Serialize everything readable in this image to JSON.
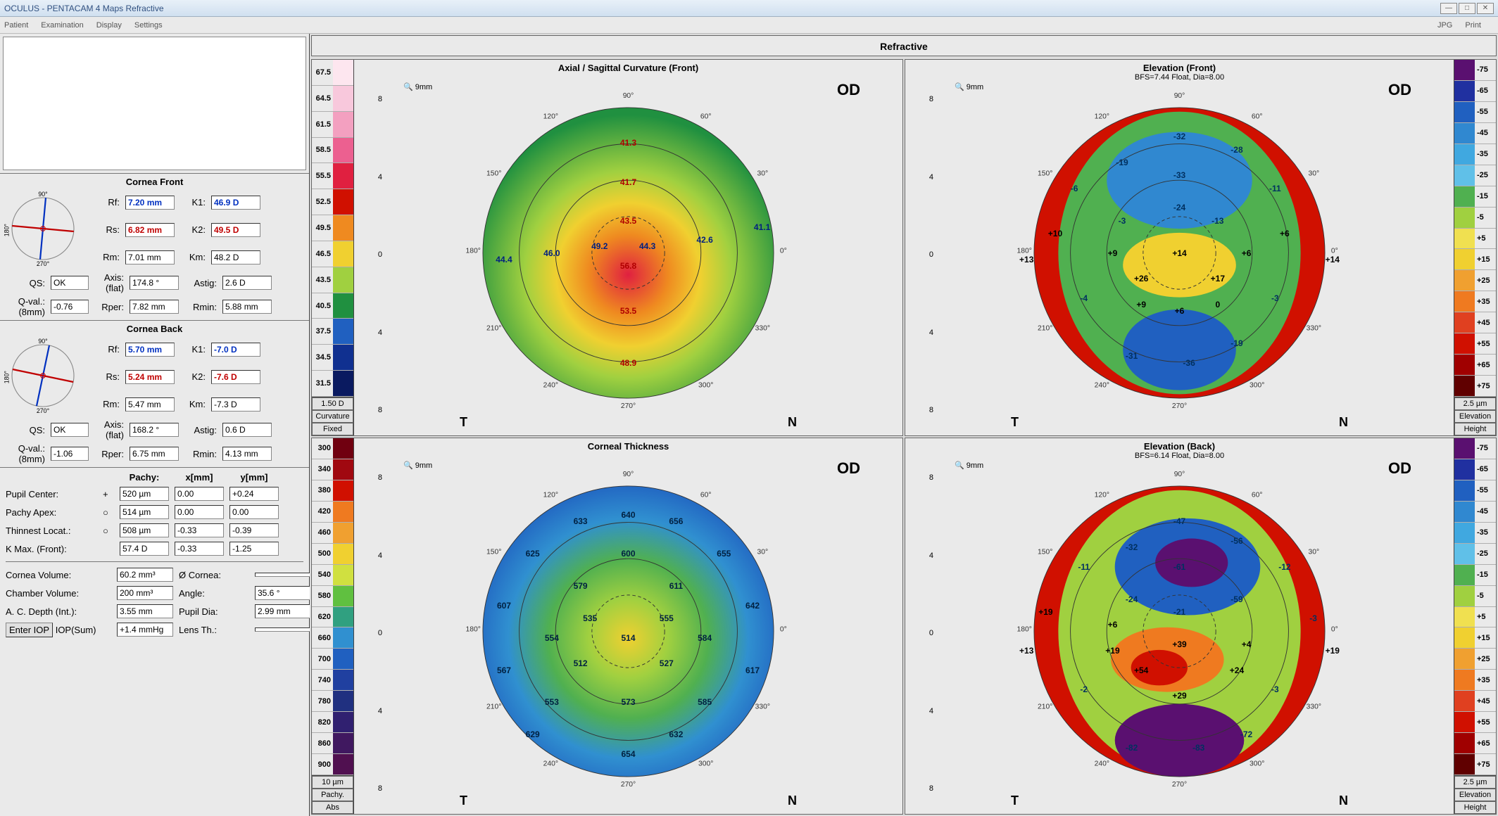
{
  "window": {
    "title": "OCULUS  -  PENTACAM  4 Maps Refractive",
    "btn_min": "—",
    "btn_max": "□",
    "btn_close": "✕"
  },
  "menu": {
    "patient": "Patient",
    "examination": "Examination",
    "display": "Display",
    "settings": "Settings",
    "jpg": "JPG",
    "print": "Print"
  },
  "maps_title": "Refractive",
  "eye": "OD",
  "cornea_front": {
    "title": "Cornea Front",
    "rf": "7.20 mm",
    "k1": "46.9 D",
    "rs": "6.82 mm",
    "k2": "49.5 D",
    "rm": "7.01 mm",
    "km": "48.2 D",
    "qs": "OK",
    "axis": "174.8 °",
    "astig": "2.6 D",
    "qval": "-0.76",
    "rper": "7.82 mm",
    "rmin": "5.88 mm",
    "axis_line_color": "#c00000",
    "perp_line_color": "#0030c0",
    "axis_angle": 174.8
  },
  "cornea_back": {
    "title": "Cornea Back",
    "rf": "5.70 mm",
    "k1": "-7.0 D",
    "rs": "5.24 mm",
    "k2": "-7.6 D",
    "rm": "5.47 mm",
    "km": "-7.3 D",
    "qs": "OK",
    "axis": "168.2 °",
    "astig": "0.6 D",
    "qval": "-1.06",
    "rper": "6.75 mm",
    "rmin": "4.13 mm",
    "axis_line_color": "#c00000",
    "perp_line_color": "#0030c0",
    "axis_angle": 168.2
  },
  "labels": {
    "rf": "Rf:",
    "k1": "K1:",
    "rs": "Rs:",
    "k2": "K2:",
    "rm": "Rm:",
    "km": "Km:",
    "qs": "QS:",
    "axis_flat": "Axis:\n(flat)",
    "astig": "Astig:",
    "qval": "Q-val.:\n(8mm)",
    "rper": "Rper:",
    "rmin": "Rmin:",
    "pachy": "Pachy:",
    "xmm": "x[mm]",
    "ymm": "y[mm]",
    "pupil_center": "Pupil Center:",
    "pachy_apex": "Pachy Apex:",
    "thinnest": "Thinnest Locat.:",
    "kmax": "K Max. (Front):",
    "cornea_vol": "Cornea Volume:",
    "diam": "Ø Cornea:",
    "chamber_vol": "Chamber Volume:",
    "angle": "Angle:",
    "ac_depth": "A. C. Depth (Int.):",
    "pupil_dia": "Pupil Dia:",
    "enter_iop": "Enter IOP",
    "iop_sum": "IOP(Sum)",
    "lens_th": "Lens Th.:",
    "mag": "🔍 9mm",
    "t": "T",
    "n": "N"
  },
  "pachy": {
    "pupil_center": {
      "sym": "+",
      "p": "520 µm",
      "x": "0.00",
      "y": "+0.24"
    },
    "apex": {
      "sym": "○",
      "p": "514 µm",
      "x": "0.00",
      "y": "0.00"
    },
    "thin": {
      "sym": "○",
      "p": "508 µm",
      "x": "-0.33",
      "y": "-0.39"
    },
    "kmax": {
      "sym": "",
      "p": "57.4 D",
      "x": "-0.33",
      "y": "-1.25"
    }
  },
  "vol": {
    "cornea": "60.2 mm³",
    "diam": "",
    "chamber": "200 mm³",
    "angle": "35.6 °",
    "depth": "3.55 mm",
    "pupil": "2.99 mm",
    "iop_sum": "+1.4 mmHg",
    "lens_th": ""
  },
  "map1": {
    "title": "Axial / Sagittal Curvature (Front)",
    "colorbar_side": "left",
    "cb": [
      {
        "v": "67.5",
        "c": "#fde6ef"
      },
      {
        "v": "64.5",
        "c": "#f8c8dc"
      },
      {
        "v": "61.5",
        "c": "#f3a0c0"
      },
      {
        "v": "58.5",
        "c": "#ec6090"
      },
      {
        "v": "55.5",
        "c": "#e02040"
      },
      {
        "v": "52.5",
        "c": "#d01000"
      },
      {
        "v": "49.5",
        "c": "#ef8a20"
      },
      {
        "v": "46.5",
        "c": "#f0d030"
      },
      {
        "v": "43.5",
        "c": "#a0d040"
      },
      {
        "v": "40.5",
        "c": "#209040"
      },
      {
        "v": "37.5",
        "c": "#2060c0"
      },
      {
        "v": "34.5",
        "c": "#103090"
      },
      {
        "v": "31.5",
        "c": "#0a1a60"
      }
    ],
    "cb_footer": [
      "1.50 D",
      "Curvature",
      "Fixed"
    ],
    "axis_ticks": [
      "8",
      "4",
      "0",
      "4",
      "8"
    ],
    "deg_labels": [
      "0°",
      "30°",
      "60°",
      "90°",
      "120°",
      "150°",
      "180°",
      "210°",
      "240°",
      "270°",
      "300°",
      "330°"
    ],
    "values": [
      {
        "x": 50,
        "y": 16,
        "t": "41.3",
        "c": "#b00000"
      },
      {
        "x": 50,
        "y": 28,
        "t": "41.7",
        "c": "#b00000"
      },
      {
        "x": 50,
        "y": 40,
        "t": "43.5",
        "c": "#b00000"
      },
      {
        "x": 44,
        "y": 48,
        "t": "49.2",
        "c": "#002080"
      },
      {
        "x": 54,
        "y": 48,
        "t": "44.3",
        "c": "#002080"
      },
      {
        "x": 66,
        "y": 46,
        "t": "42.6",
        "c": "#002080"
      },
      {
        "x": 78,
        "y": 42,
        "t": "41.1",
        "c": "#002080"
      },
      {
        "x": 34,
        "y": 50,
        "t": "46.0",
        "c": "#002080"
      },
      {
        "x": 24,
        "y": 52,
        "t": "44.4",
        "c": "#002080"
      },
      {
        "x": 50,
        "y": 54,
        "t": "56.8",
        "c": "#b00000"
      },
      {
        "x": 50,
        "y": 68,
        "t": "53.5",
        "c": "#b00000"
      },
      {
        "x": 50,
        "y": 84,
        "t": "48.9",
        "c": "#b00000"
      }
    ],
    "gradient_stops": [
      {
        "off": "0%",
        "c": "#e02040"
      },
      {
        "off": "25%",
        "c": "#ef8a20"
      },
      {
        "off": "45%",
        "c": "#f0d030"
      },
      {
        "off": "65%",
        "c": "#a0d040"
      },
      {
        "off": "100%",
        "c": "#209040"
      }
    ],
    "center_offset_y": 0.15
  },
  "map2": {
    "title": "Elevation (Front)",
    "subtitle": "BFS=7.44 Float, Dia=8.00",
    "colorbar_side": "right",
    "cb": [
      {
        "v": "-75",
        "c": "#5a1070"
      },
      {
        "v": "-65",
        "c": "#2030a0"
      },
      {
        "v": "-55",
        "c": "#2060c0"
      },
      {
        "v": "-45",
        "c": "#3088d0"
      },
      {
        "v": "-35",
        "c": "#40a8e0"
      },
      {
        "v": "-25",
        "c": "#60c0e8"
      },
      {
        "v": "-15",
        "c": "#50b050"
      },
      {
        "v": "-5",
        "c": "#a0d040"
      },
      {
        "v": "+5",
        "c": "#f0e050"
      },
      {
        "v": "+15",
        "c": "#f0d030"
      },
      {
        "v": "+25",
        "c": "#f0a030"
      },
      {
        "v": "+35",
        "c": "#ef7a20"
      },
      {
        "v": "+45",
        "c": "#e04020"
      },
      {
        "v": "+55",
        "c": "#d01000"
      },
      {
        "v": "+65",
        "c": "#a00000"
      },
      {
        "v": "+75",
        "c": "#600000"
      }
    ],
    "cb_footer": [
      "2.5 µm",
      "Elevation",
      "Height"
    ],
    "axis_ticks": [
      "8",
      "4",
      "0",
      "4",
      "8"
    ],
    "values": [
      {
        "x": 50,
        "y": 14,
        "t": "-32",
        "c": "#003060"
      },
      {
        "x": 62,
        "y": 18,
        "t": "-28",
        "c": "#003060"
      },
      {
        "x": 38,
        "y": 22,
        "t": "-19",
        "c": "#003060"
      },
      {
        "x": 50,
        "y": 26,
        "t": "-33",
        "c": "#003060"
      },
      {
        "x": 70,
        "y": 30,
        "t": "-11",
        "c": "#003060"
      },
      {
        "x": 28,
        "y": 30,
        "t": "-6",
        "c": "#003060"
      },
      {
        "x": 50,
        "y": 36,
        "t": "-24",
        "c": "#003060"
      },
      {
        "x": 38,
        "y": 40,
        "t": "-3",
        "c": "#003060"
      },
      {
        "x": 58,
        "y": 40,
        "t": "-13",
        "c": "#003060"
      },
      {
        "x": 24,
        "y": 44,
        "t": "+10",
        "c": "#000"
      },
      {
        "x": 72,
        "y": 44,
        "t": "+6",
        "c": "#000"
      },
      {
        "x": 36,
        "y": 50,
        "t": "+9",
        "c": "#000"
      },
      {
        "x": 50,
        "y": 50,
        "t": "+14",
        "c": "#000"
      },
      {
        "x": 64,
        "y": 50,
        "t": "+6",
        "c": "#000"
      },
      {
        "x": 18,
        "y": 52,
        "t": "+13",
        "c": "#000"
      },
      {
        "x": 82,
        "y": 52,
        "t": "+14",
        "c": "#000"
      },
      {
        "x": 42,
        "y": 58,
        "t": "+26",
        "c": "#000"
      },
      {
        "x": 58,
        "y": 58,
        "t": "+17",
        "c": "#000"
      },
      {
        "x": 30,
        "y": 64,
        "t": "-4",
        "c": "#003060"
      },
      {
        "x": 42,
        "y": 66,
        "t": "+9",
        "c": "#000"
      },
      {
        "x": 50,
        "y": 68,
        "t": "+6",
        "c": "#000"
      },
      {
        "x": 58,
        "y": 66,
        "t": "0",
        "c": "#000"
      },
      {
        "x": 70,
        "y": 64,
        "t": "-3",
        "c": "#003060"
      },
      {
        "x": 40,
        "y": 82,
        "t": "-31",
        "c": "#003060"
      },
      {
        "x": 52,
        "y": 84,
        "t": "-36",
        "c": "#003060"
      },
      {
        "x": 62,
        "y": 78,
        "t": "-19",
        "c": "#003060"
      }
    ],
    "bg_type": "elevation_front"
  },
  "map3": {
    "title": "Corneal Thickness",
    "colorbar_side": "left",
    "cb": [
      {
        "v": "300",
        "c": "#700010"
      },
      {
        "v": "340",
        "c": "#a00810"
      },
      {
        "v": "380",
        "c": "#d01000"
      },
      {
        "v": "420",
        "c": "#ef7a20"
      },
      {
        "v": "460",
        "c": "#f0a030"
      },
      {
        "v": "500",
        "c": "#f0d030"
      },
      {
        "v": "540",
        "c": "#d0e040"
      },
      {
        "v": "580",
        "c": "#60c040"
      },
      {
        "v": "620",
        "c": "#30a080"
      },
      {
        "v": "660",
        "c": "#3090d0"
      },
      {
        "v": "700",
        "c": "#2060c0"
      },
      {
        "v": "740",
        "c": "#2040a0"
      },
      {
        "v": "780",
        "c": "#203080"
      },
      {
        "v": "820",
        "c": "#302070"
      },
      {
        "v": "860",
        "c": "#401860"
      },
      {
        "v": "900",
        "c": "#501050"
      }
    ],
    "cb_footer": [
      "10 µm",
      "Pachy.",
      "Abs"
    ],
    "axis_ticks": [
      "8",
      "4",
      "0",
      "4",
      "8"
    ],
    "values": [
      {
        "x": 40,
        "y": 16,
        "t": "633",
        "c": "#002040"
      },
      {
        "x": 50,
        "y": 14,
        "t": "640",
        "c": "#002040"
      },
      {
        "x": 60,
        "y": 16,
        "t": "656",
        "c": "#002040"
      },
      {
        "x": 30,
        "y": 26,
        "t": "625",
        "c": "#002040"
      },
      {
        "x": 50,
        "y": 26,
        "t": "600",
        "c": "#002040"
      },
      {
        "x": 70,
        "y": 26,
        "t": "655",
        "c": "#002040"
      },
      {
        "x": 40,
        "y": 36,
        "t": "579",
        "c": "#002040"
      },
      {
        "x": 60,
        "y": 36,
        "t": "611",
        "c": "#002040"
      },
      {
        "x": 24,
        "y": 42,
        "t": "607",
        "c": "#002040"
      },
      {
        "x": 42,
        "y": 46,
        "t": "535",
        "c": "#002040"
      },
      {
        "x": 58,
        "y": 46,
        "t": "555",
        "c": "#002040"
      },
      {
        "x": 76,
        "y": 42,
        "t": "642",
        "c": "#002040"
      },
      {
        "x": 34,
        "y": 52,
        "t": "554",
        "c": "#002040"
      },
      {
        "x": 50,
        "y": 52,
        "t": "514",
        "c": "#002040"
      },
      {
        "x": 66,
        "y": 52,
        "t": "584",
        "c": "#002040"
      },
      {
        "x": 40,
        "y": 60,
        "t": "512",
        "c": "#002040"
      },
      {
        "x": 58,
        "y": 60,
        "t": "527",
        "c": "#002040"
      },
      {
        "x": 24,
        "y": 62,
        "t": "567",
        "c": "#002040"
      },
      {
        "x": 76,
        "y": 62,
        "t": "617",
        "c": "#002040"
      },
      {
        "x": 34,
        "y": 72,
        "t": "553",
        "c": "#002040"
      },
      {
        "x": 50,
        "y": 72,
        "t": "573",
        "c": "#002040"
      },
      {
        "x": 66,
        "y": 72,
        "t": "585",
        "c": "#002040"
      },
      {
        "x": 30,
        "y": 82,
        "t": "629",
        "c": "#002040"
      },
      {
        "x": 60,
        "y": 82,
        "t": "632",
        "c": "#002040"
      },
      {
        "x": 50,
        "y": 88,
        "t": "654",
        "c": "#002040"
      }
    ],
    "gradient_stops": [
      {
        "off": "0%",
        "c": "#f0d030"
      },
      {
        "off": "25%",
        "c": "#a0d040"
      },
      {
        "off": "50%",
        "c": "#50b050"
      },
      {
        "off": "75%",
        "c": "#3090d0"
      },
      {
        "off": "100%",
        "c": "#2060c0"
      }
    ],
    "center_offset_y": 0.05
  },
  "map4": {
    "title": "Elevation (Back)",
    "subtitle": "BFS=6.14 Float, Dia=8.00",
    "colorbar_side": "right",
    "cb": [
      {
        "v": "-75",
        "c": "#5a1070"
      },
      {
        "v": "-65",
        "c": "#2030a0"
      },
      {
        "v": "-55",
        "c": "#2060c0"
      },
      {
        "v": "-45",
        "c": "#3088d0"
      },
      {
        "v": "-35",
        "c": "#40a8e0"
      },
      {
        "v": "-25",
        "c": "#60c0e8"
      },
      {
        "v": "-15",
        "c": "#50b050"
      },
      {
        "v": "-5",
        "c": "#a0d040"
      },
      {
        "v": "+5",
        "c": "#f0e050"
      },
      {
        "v": "+15",
        "c": "#f0d030"
      },
      {
        "v": "+25",
        "c": "#f0a030"
      },
      {
        "v": "+35",
        "c": "#ef7a20"
      },
      {
        "v": "+45",
        "c": "#e04020"
      },
      {
        "v": "+55",
        "c": "#d01000"
      },
      {
        "v": "+65",
        "c": "#a00000"
      },
      {
        "v": "+75",
        "c": "#600000"
      }
    ],
    "cb_footer": [
      "2.5 µm",
      "Elevation",
      "Height"
    ],
    "axis_ticks": [
      "8",
      "4",
      "0",
      "4",
      "8"
    ],
    "values": [
      {
        "x": 50,
        "y": 16,
        "t": "-47",
        "c": "#003060"
      },
      {
        "x": 40,
        "y": 24,
        "t": "-32",
        "c": "#003060"
      },
      {
        "x": 62,
        "y": 22,
        "t": "-56",
        "c": "#003060"
      },
      {
        "x": 50,
        "y": 30,
        "t": "-61",
        "c": "#003060"
      },
      {
        "x": 30,
        "y": 30,
        "t": "-11",
        "c": "#003060"
      },
      {
        "x": 72,
        "y": 30,
        "t": "-12",
        "c": "#003060"
      },
      {
        "x": 40,
        "y": 40,
        "t": "-24",
        "c": "#003060"
      },
      {
        "x": 62,
        "y": 40,
        "t": "-59",
        "c": "#003060"
      },
      {
        "x": 22,
        "y": 44,
        "t": "+19",
        "c": "#000"
      },
      {
        "x": 50,
        "y": 44,
        "t": "-21",
        "c": "#003060"
      },
      {
        "x": 78,
        "y": 46,
        "t": "-3",
        "c": "#003060"
      },
      {
        "x": 36,
        "y": 48,
        "t": "+6",
        "c": "#000"
      },
      {
        "x": 36,
        "y": 56,
        "t": "+19",
        "c": "#000"
      },
      {
        "x": 50,
        "y": 54,
        "t": "+39",
        "c": "#000"
      },
      {
        "x": 64,
        "y": 54,
        "t": "+4",
        "c": "#000"
      },
      {
        "x": 18,
        "y": 56,
        "t": "+13",
        "c": "#000"
      },
      {
        "x": 82,
        "y": 56,
        "t": "+19",
        "c": "#000"
      },
      {
        "x": 42,
        "y": 62,
        "t": "+54",
        "c": "#000"
      },
      {
        "x": 62,
        "y": 62,
        "t": "+24",
        "c": "#000"
      },
      {
        "x": 30,
        "y": 68,
        "t": "-2",
        "c": "#003060"
      },
      {
        "x": 70,
        "y": 68,
        "t": "-3",
        "c": "#003060"
      },
      {
        "x": 50,
        "y": 70,
        "t": "+29",
        "c": "#000"
      },
      {
        "x": 40,
        "y": 86,
        "t": "-82",
        "c": "#003060"
      },
      {
        "x": 54,
        "y": 86,
        "t": "-83",
        "c": "#003060"
      },
      {
        "x": 64,
        "y": 82,
        "t": "-72",
        "c": "#003060"
      }
    ],
    "bg_type": "elevation_back"
  }
}
